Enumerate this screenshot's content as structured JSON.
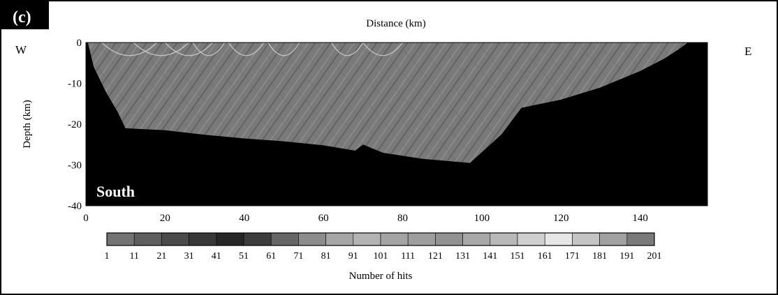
{
  "panel_label": "(c)",
  "direction_left": "W",
  "direction_right": "E",
  "region_label": "South",
  "chart_data": {
    "type": "heatmap",
    "title": "",
    "xlabel": "Distance (km)",
    "ylabel": "Depth (km)",
    "xlim": [
      0,
      157
    ],
    "ylim": [
      -40,
      0
    ],
    "x_ticks": [
      0,
      20,
      40,
      60,
      80,
      100,
      120,
      140
    ],
    "y_ticks": [
      0,
      -10,
      -20,
      -30,
      -40
    ],
    "coverage_boundary": [
      [
        0.5,
        0
      ],
      [
        2,
        -6
      ],
      [
        5,
        -12
      ],
      [
        8,
        -17
      ],
      [
        10,
        -21
      ],
      [
        20,
        -21.5
      ],
      [
        30,
        -22.6
      ],
      [
        40,
        -23.5
      ],
      [
        50,
        -24.2
      ],
      [
        60,
        -25.2
      ],
      [
        68,
        -26.5
      ],
      [
        70,
        -25
      ],
      [
        75,
        -27
      ],
      [
        85,
        -28.5
      ],
      [
        97,
        -29.5
      ],
      [
        105,
        -22.5
      ],
      [
        110,
        -16
      ],
      [
        120,
        -14
      ],
      [
        130,
        -11
      ],
      [
        140,
        -7
      ],
      [
        146,
        -4
      ],
      [
        150,
        -1.5
      ],
      [
        152,
        0
      ]
    ],
    "colorbar": {
      "label": "Number of hits",
      "ticks": [
        "1",
        "11",
        "21",
        "31",
        "41",
        "51",
        "61",
        "71",
        "81",
        "91",
        "101",
        "111",
        "121",
        "131",
        "141",
        "151",
        "161",
        "171",
        "181",
        "191",
        "201"
      ],
      "colors": [
        "#737373",
        "#5e5e5e",
        "#4a4a4a",
        "#383838",
        "#262626",
        "#3c3c3c",
        "#666666",
        "#8c8c8c",
        "#a6a6a6",
        "#b3b3b3",
        "#a3a3a3",
        "#9e9e9e",
        "#929292",
        "#a8a8a8",
        "#b8b8b8",
        "#cfcfcf",
        "#e6e6e6",
        "#c4c4c4",
        "#a1a1a1",
        "#7a7a7a"
      ]
    }
  }
}
